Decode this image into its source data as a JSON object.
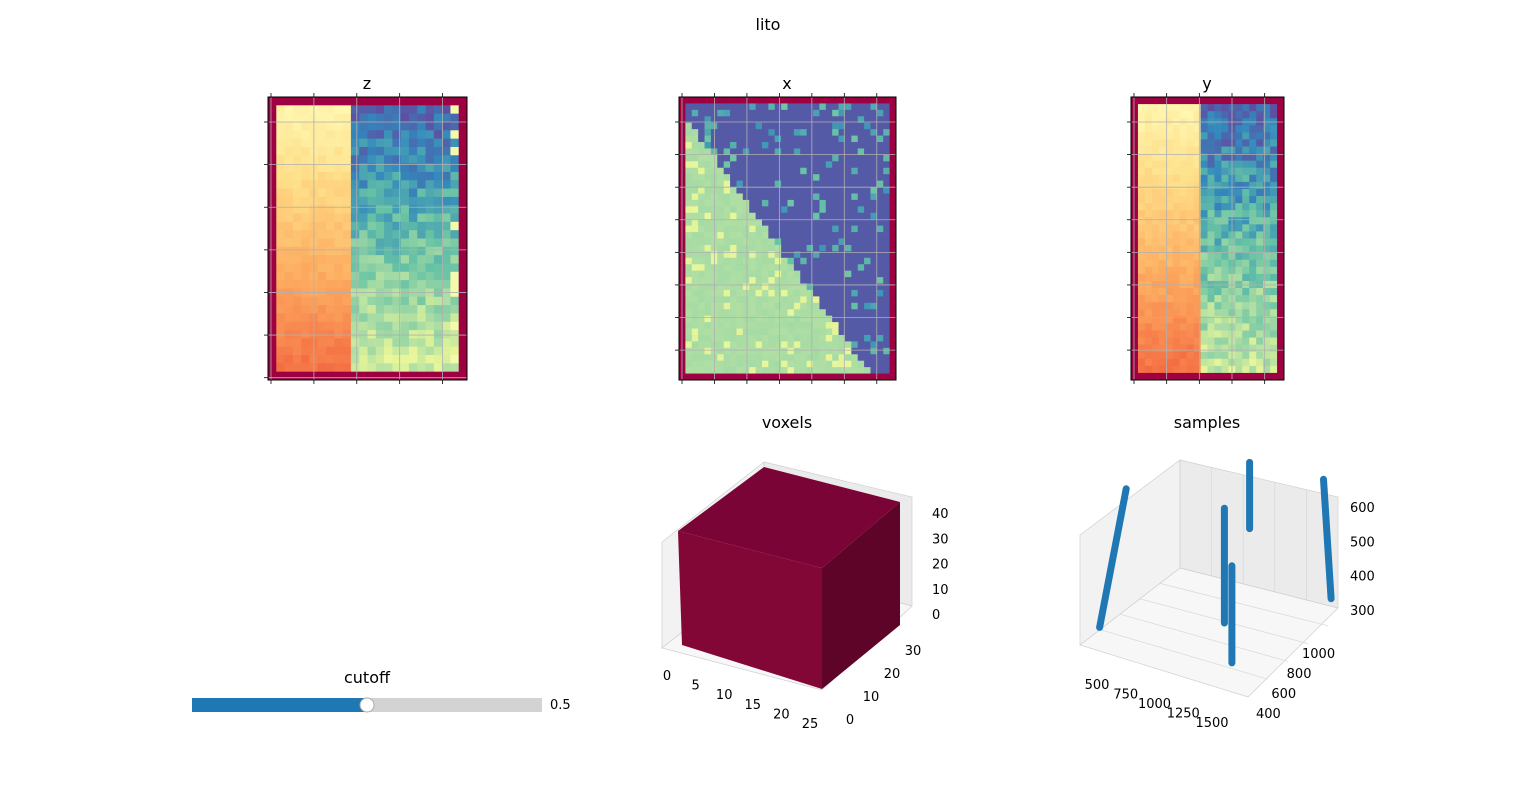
{
  "figure_title": "lito",
  "slider": {
    "label": "cutoff",
    "value": 0.5,
    "value_text": "0.5",
    "min": 0,
    "max": 1
  },
  "colors": {
    "slider_fill": "#1f77b4",
    "slider_track": "#d3d3d3",
    "voxel_top": "#7a0436",
    "voxel_front": "#820737",
    "voxel_side": "#5e0428",
    "sample_line": "#1f77b4",
    "border_value": "#9e0142"
  },
  "chart_data": [
    {
      "type": "heatmap",
      "title": "z",
      "colormap": "Spectral",
      "grid": true,
      "show_tick_labels": false,
      "tick_count_x": 5,
      "tick_count_y": 7,
      "structure": "left 40% warm yellow-to-orange gradient downward; right 60% cool blue-to-green gradient downward; dark red border"
    },
    {
      "type": "heatmap",
      "title": "x",
      "colormap": "Spectral",
      "grid": true,
      "show_tick_labels": false,
      "tick_count_x": 7,
      "tick_count_y": 9,
      "structure": "diagonal split: light green lower-left triangle, purple-blue upper-right triangle; dark red border"
    },
    {
      "type": "heatmap",
      "title": "y",
      "colormap": "Spectral",
      "grid": true,
      "show_tick_labels": false,
      "tick_count_x": 5,
      "tick_count_y": 9,
      "structure": "left 45% warm gradient; right 55% blue-to-green gradient; dark red border"
    },
    {
      "type": "voxels",
      "title": "voxels",
      "x_ticks": [
        "0",
        "5",
        "10",
        "15",
        "20",
        "25"
      ],
      "y_ticks": [
        "0",
        "10",
        "20",
        "30"
      ],
      "z_ticks": [
        "0",
        "10",
        "20",
        "30",
        "40"
      ],
      "xlim": [
        0,
        25
      ],
      "ylim": [
        0,
        35
      ],
      "zlim": [
        0,
        44
      ]
    },
    {
      "type": "scatter3d",
      "title": "samples",
      "x_ticks": [
        "500",
        "750",
        "1000",
        "1250",
        "1500"
      ],
      "y_ticks": [
        "400",
        "600",
        "800",
        "1000"
      ],
      "z_ticks": [
        "300",
        "400",
        "500",
        "600"
      ],
      "xlim": [
        400,
        1600
      ],
      "ylim": [
        350,
        1150
      ],
      "zlim": [
        280,
        620
      ],
      "series": [
        {
          "from": [
            420,
            450,
            300
          ],
          "to": [
            520,
            560,
            600
          ]
        },
        {
          "from": [
            1000,
            1050,
            450
          ],
          "to": [
            1000,
            1050,
            600
          ]
        },
        {
          "from": [
            1050,
            780,
            300
          ],
          "to": [
            1050,
            780,
            560
          ]
        },
        {
          "from": [
            1350,
            500,
            300
          ],
          "to": [
            1350,
            500,
            520
          ]
        },
        {
          "from": [
            1600,
            1050,
            350
          ],
          "to": [
            1500,
            1100,
            600
          ]
        }
      ]
    }
  ]
}
